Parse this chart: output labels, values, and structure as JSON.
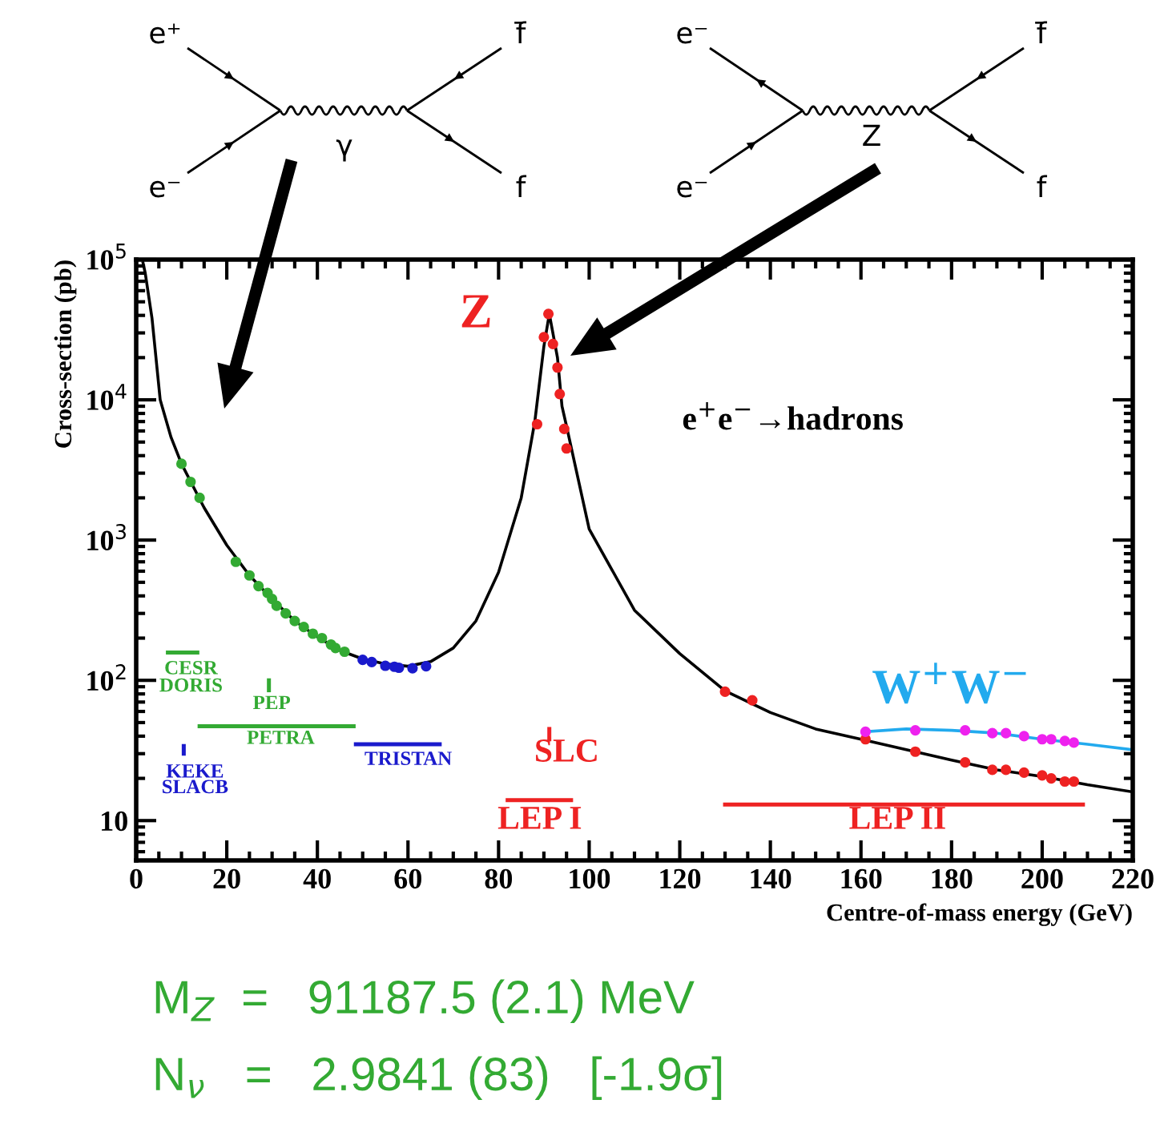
{
  "chart_data": {
    "type": "line",
    "xlabel": "Centre-of-mass energy (GeV)",
    "ylabel": "Cross-section (pb)",
    "log": "y",
    "xlim": [
      0,
      220
    ],
    "xticks": [
      0,
      20,
      40,
      60,
      80,
      100,
      120,
      140,
      160,
      180,
      200,
      220
    ],
    "ylim": [
      5.2,
      100000
    ],
    "yticks": [
      {
        "value": 10,
        "label": "10"
      },
      {
        "value": 100,
        "label": "10$^{2}$"
      },
      {
        "value": 1000,
        "label": "10$^{3}$"
      },
      {
        "value": 10000,
        "label": "10$^{4}$"
      },
      {
        "value": 100000,
        "label": "10$^{5}$"
      }
    ],
    "grid": false,
    "series": [
      {
        "color": "#000000",
        "line_style": "solid",
        "marker": "none",
        "x": [
          1.5,
          2,
          3.5,
          5.3,
          7.7,
          10,
          15,
          20,
          25,
          30,
          35,
          40,
          45,
          50,
          55,
          60,
          65,
          70,
          75,
          80,
          85,
          88,
          90,
          91.2,
          93,
          94,
          95,
          100,
          110,
          120,
          130,
          140,
          150,
          160,
          170,
          180,
          190,
          200,
          210,
          220
        ],
        "values": [
          95000,
          80000,
          38000,
          10000,
          5400,
          3500,
          1700,
          920,
          560,
          380,
          265,
          204,
          163,
          142,
          131,
          126,
          136,
          170,
          265,
          590,
          2000,
          7000,
          24000,
          41000,
          20000,
          9000,
          6500,
          1200,
          316,
          155,
          84,
          59,
          45,
          38,
          32,
          27,
          23,
          20.6,
          18,
          16
        ]
      },
      {
        "type": "line",
        "color": "#22aaee",
        "line_style": "solid",
        "marker": "none",
        "x": [
          161,
          170,
          180,
          190,
          200,
          210,
          220
        ],
        "values": [
          43,
          45,
          44,
          42,
          38,
          35,
          32
        ]
      },
      {
        "type": "scatter",
        "color": "#33aa33",
        "marker": "circle",
        "x": [
          10,
          12,
          14,
          22,
          25,
          27,
          29,
          30,
          31,
          33,
          35,
          37,
          39,
          41,
          43,
          44,
          46
        ],
        "values": [
          3500,
          2600,
          2000,
          700,
          560,
          470,
          420,
          380,
          340,
          300,
          265,
          240,
          215,
          200,
          180,
          170,
          160
        ]
      },
      {
        "type": "scatter",
        "color": "#1a1acc",
        "marker": "circle",
        "x": [
          50,
          52,
          55,
          57,
          58,
          61,
          64
        ],
        "values": [
          140,
          135,
          127,
          125,
          123,
          122,
          126
        ]
      },
      {
        "type": "scatter",
        "color": "#ee2222",
        "marker": "circle",
        "x": [
          88.5,
          90,
          91,
          92,
          93,
          93.5,
          94.5,
          95
        ],
        "values": [
          6700,
          28000,
          41000,
          25000,
          17000,
          11000,
          6200,
          4500
        ]
      },
      {
        "type": "scatter",
        "color": "#ee2222",
        "marker": "circle",
        "x": [
          130,
          136,
          161,
          172,
          183,
          189,
          192,
          196,
          200,
          202,
          205,
          207
        ],
        "values": [
          83,
          72,
          38,
          31,
          26,
          23,
          23,
          22,
          21,
          20,
          19,
          19
        ]
      },
      {
        "type": "scatter",
        "color": "#ee22ee",
        "marker": "circle",
        "x": [
          161,
          172,
          183,
          189,
          192,
          196,
          200,
          202,
          205,
          207
        ],
        "values": [
          43,
          44,
          44,
          42,
          42,
          40,
          38,
          38,
          37,
          36
        ]
      },
      {
        "type": "line",
        "color": "#33aa33",
        "marker": "none",
        "x": [
          7,
          13.5
        ],
        "values": [
          158,
          158
        ]
      },
      {
        "type": "line",
        "color": "#33aa33",
        "marker": "none",
        "x": [
          29.3,
          29.3
        ],
        "values": [
          85,
          100
        ]
      },
      {
        "type": "line",
        "color": "#33aa33",
        "marker": "none",
        "x": [
          14,
          48
        ],
        "values": [
          47,
          47
        ]
      },
      {
        "type": "line",
        "color": "#1a1acc",
        "marker": "none",
        "x": [
          48.5,
          67
        ],
        "values": [
          35,
          35
        ]
      },
      {
        "type": "line",
        "color": "#1a1acc",
        "marker": "none",
        "x": [
          10.5,
          10.5
        ],
        "values": [
          30,
          34
        ]
      },
      {
        "type": "line",
        "color": "#ee2222",
        "marker": "none",
        "x": [
          91.2,
          91.2
        ],
        "values": [
          38,
          45
        ]
      },
      {
        "type": "line",
        "color": "#ee2222",
        "marker": "none",
        "x": [
          82,
          96
        ],
        "values": [
          14,
          14
        ]
      },
      {
        "type": "line",
        "color": "#ee2222",
        "marker": "none",
        "x": [
          130,
          209
        ],
        "values": [
          13,
          13
        ]
      }
    ],
    "annotations": [
      "Z",
      "e$^{+}$e$^{−}$→hadrons",
      "W$^{+}$W$^{−}$",
      "SLC",
      "LEP I",
      "LEP II",
      "CESR",
      "DORIS",
      "PEP",
      "PETRA",
      "TRISTAN",
      "KEKE",
      "SLACB",
      "e⁺",
      "e⁻",
      "f̄",
      "f",
      "γ",
      "e⁻",
      "e⁻",
      "f̄",
      "f",
      "Z",
      "M$_{Z}$  =   91187.5 (2.1) MeV",
      "N$_{ν}$   =   2.9841 (83)   [-1.9σ]"
    ]
  }
}
